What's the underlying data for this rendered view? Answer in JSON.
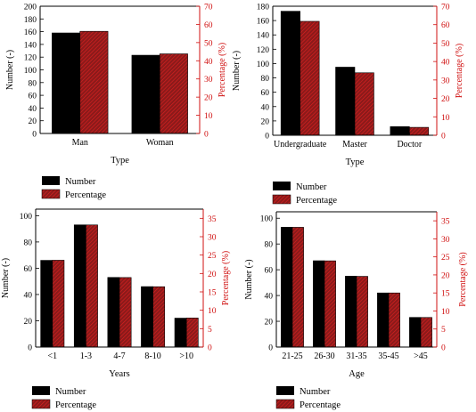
{
  "colors": {
    "number_fill": "#000000",
    "percentage_fill": "#8b1a1a",
    "percentage_hatch": "#e02020",
    "right_axis": "#d01010",
    "axis": "#000000"
  },
  "chart_data": [
    {
      "type": "bar",
      "xlabel": "Type",
      "categories": [
        "Man",
        "Woman"
      ],
      "series": [
        {
          "name": "Number",
          "axis": "left",
          "values": [
            158,
            123
          ]
        },
        {
          "name": "Percentage",
          "axis": "right",
          "values": [
            56.2,
            43.8
          ]
        }
      ],
      "ylabel": "Number (-)",
      "ylim": [
        0,
        200
      ],
      "yticks": [
        0,
        20,
        40,
        60,
        80,
        100,
        120,
        140,
        160,
        180,
        200
      ],
      "y2label": "Percentage (%)",
      "y2lim": [
        0,
        70
      ],
      "y2ticks": [
        0,
        10,
        20,
        30,
        40,
        50,
        60,
        70
      ],
      "legend": [
        "Number",
        "Percentage"
      ],
      "legend_position": "bottom-left"
    },
    {
      "type": "bar",
      "xlabel": "Type",
      "categories": [
        "Undergraduate",
        "Master",
        "Doctor"
      ],
      "series": [
        {
          "name": "Number",
          "axis": "left",
          "values": [
            173,
            95,
            12
          ]
        },
        {
          "name": "Percentage",
          "axis": "right",
          "values": [
            61.8,
            33.9,
            4.3
          ]
        }
      ],
      "ylabel": "Number (-)",
      "ylim": [
        0,
        180
      ],
      "yticks": [
        0,
        20,
        40,
        60,
        80,
        100,
        120,
        140,
        160,
        180
      ],
      "y2label": "Percentage (%)",
      "y2lim": [
        0,
        70
      ],
      "y2ticks": [
        0,
        10,
        20,
        30,
        40,
        50,
        60,
        70
      ],
      "legend": [
        "Number",
        "Percentage"
      ],
      "legend_position": "bottom-left"
    },
    {
      "type": "bar",
      "xlabel": "Years",
      "categories": [
        "<1",
        "1-3",
        "4-7",
        "8-10",
        ">10"
      ],
      "series": [
        {
          "name": "Number",
          "axis": "left",
          "values": [
            66,
            93,
            53,
            46,
            22
          ]
        },
        {
          "name": "Percentage",
          "axis": "right",
          "values": [
            23.6,
            33.2,
            18.9,
            16.4,
            7.9
          ]
        }
      ],
      "ylabel": "Number (-)",
      "ylim": [
        0,
        105
      ],
      "yticks": [
        0,
        20,
        40,
        60,
        80,
        100
      ],
      "y2label": "Percentage (%)",
      "y2lim": [
        0,
        37.5
      ],
      "y2ticks": [
        0,
        5,
        10,
        15,
        20,
        25,
        30,
        35
      ],
      "legend": [
        "Number",
        "Percentage"
      ],
      "legend_position": "bottom-left"
    },
    {
      "type": "bar",
      "xlabel": "Age",
      "categories": [
        "21-25",
        "26-30",
        "31-35",
        "35-45",
        ">45"
      ],
      "series": [
        {
          "name": "Number",
          "axis": "left",
          "values": [
            93,
            67,
            55,
            42,
            23
          ]
        },
        {
          "name": "Percentage",
          "axis": "right",
          "values": [
            33.2,
            23.9,
            19.6,
            15.0,
            8.2
          ]
        }
      ],
      "ylabel": "Number (-)",
      "ylim": [
        0,
        105
      ],
      "yticks": [
        0,
        20,
        40,
        60,
        80,
        100
      ],
      "y2label": "Percentage (%)",
      "y2lim": [
        0,
        37.5
      ],
      "y2ticks": [
        0,
        5,
        10,
        15,
        20,
        25,
        30,
        35
      ],
      "legend": [
        "Number",
        "Percentage"
      ],
      "legend_position": "bottom-left"
    }
  ]
}
